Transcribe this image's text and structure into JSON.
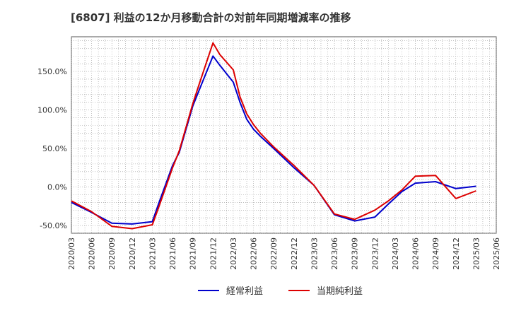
{
  "chart_data": {
    "type": "line",
    "title": "[6807]  利益の12か月移動合計の対前年同期増減率の推移",
    "xlabel": "",
    "ylabel": "",
    "ylim": [
      -60,
      195
    ],
    "y_ticks": [
      -50,
      0,
      50,
      100,
      150
    ],
    "y_tick_labels": [
      "-50.0%",
      "0.0%",
      "50.0%",
      "100.0%",
      "150.0%"
    ],
    "categories": [
      "2020/03",
      "2020/06",
      "2020/09",
      "2020/12",
      "2021/03",
      "2021/06",
      "2021/09",
      "2021/12",
      "2022/03",
      "2022/06",
      "2022/09",
      "2022/12",
      "2023/03",
      "2023/06",
      "2023/09",
      "2023/12",
      "2024/03",
      "2024/06",
      "2024/09",
      "2024/12",
      "2025/03",
      "2025/06"
    ],
    "x": [
      "2020/03",
      "2020/06",
      "2020/09",
      "2020/12",
      "2021/03",
      "2021/04",
      "2021/06",
      "2021/07",
      "2021/09",
      "2021/10",
      "2021/12",
      "2022/01",
      "2022/03",
      "2022/04",
      "2022/05",
      "2022/06",
      "2022/07",
      "2022/09",
      "2022/12",
      "2023/03",
      "2023/06",
      "2023/09",
      "2023/12",
      "2024/02",
      "2024/04",
      "2024/06",
      "2024/09",
      "2024/12",
      "2025/03"
    ],
    "grid": true,
    "legend_position": "bottom",
    "series": [
      {
        "name": "経常利益",
        "color": "#0000cc",
        "values": [
          -20,
          -33,
          -47,
          -48,
          -45,
          -20,
          28,
          45,
          105,
          127,
          170,
          158,
          136,
          110,
          88,
          75,
          66,
          50,
          25,
          2,
          -36,
          -44,
          -39,
          -22,
          -6,
          5,
          7,
          -2,
          1
        ]
      },
      {
        "name": "当期純利益",
        "color": "#dd0000",
        "values": [
          -18,
          -32,
          -51,
          -54,
          -49,
          -25,
          25,
          47,
          108,
          135,
          187,
          172,
          152,
          117,
          95,
          81,
          70,
          52,
          28,
          2,
          -35,
          -42,
          -30,
          -18,
          -4,
          14,
          15,
          -15,
          -5
        ]
      }
    ]
  }
}
